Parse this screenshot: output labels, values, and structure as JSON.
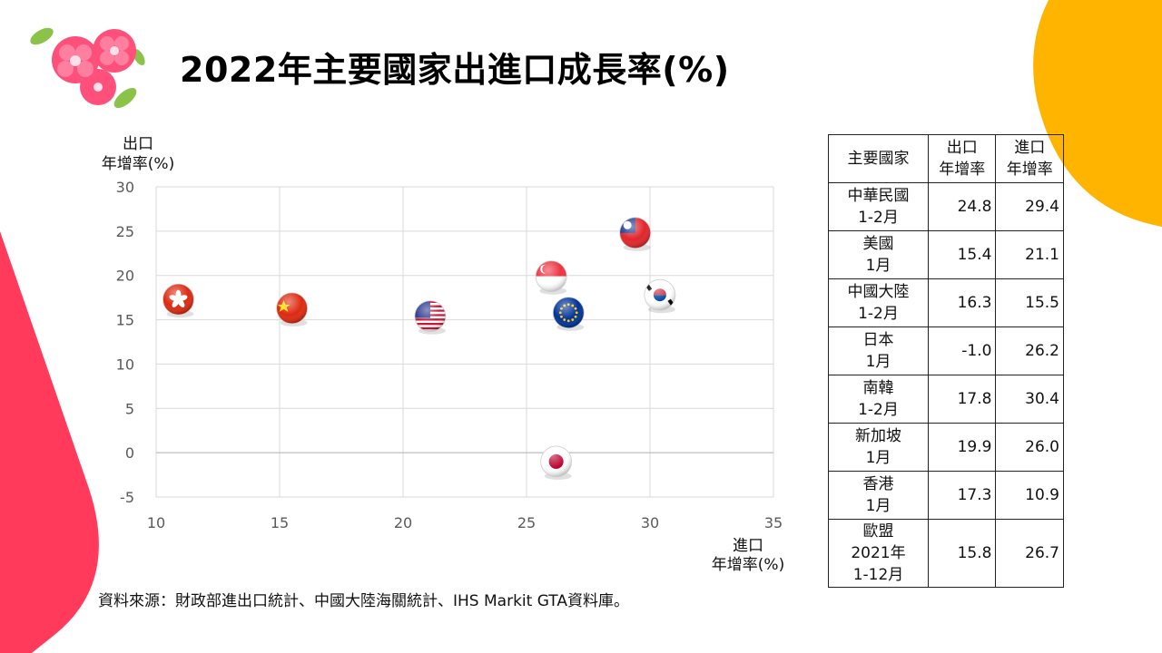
{
  "title": "2022年主要國家出進口成長率(%)",
  "source": "資料來源：財政部進出口統計、中國大陸海關統計、IHS Markit GTA資料庫。",
  "table": {
    "headers": [
      "主要國家",
      "出口\n年增率",
      "進口\n年增率"
    ],
    "rows": [
      {
        "country": "中華民國\n1-2月",
        "export": "24.8",
        "import": "29.4"
      },
      {
        "country": "美國\n1月",
        "export": "15.4",
        "import": "21.1"
      },
      {
        "country": "中國大陸\n1-2月",
        "export": "16.3",
        "import": "15.5"
      },
      {
        "country": "日本\n1月",
        "export": "-1.0",
        "import": "26.2"
      },
      {
        "country": "南韓\n1-2月",
        "export": "17.8",
        "import": "30.4"
      },
      {
        "country": "新加坡\n1月",
        "export": "19.9",
        "import": "26.0"
      },
      {
        "country": "香港\n1月",
        "export": "17.3",
        "import": "10.9"
      },
      {
        "country": "歐盟\n2021年\n1-12月",
        "export": "15.8",
        "import": "26.7"
      }
    ]
  },
  "chart_data": {
    "type": "scatter",
    "ylabel_lines": [
      "出口",
      "年增率(%)"
    ],
    "xlabel_lines": [
      "進口",
      "年增率(%)"
    ],
    "xlim": [
      10,
      35
    ],
    "ylim": [
      -5,
      30
    ],
    "xticks": [
      "10",
      "15",
      "20",
      "25",
      "30",
      "35"
    ],
    "yticks": [
      "30",
      "25",
      "20",
      "15",
      "10",
      "5",
      "0",
      "-5"
    ],
    "grid": true,
    "points": [
      {
        "name": "中華民國",
        "flag": "taiwan-flag",
        "x": 29.4,
        "y": 24.8
      },
      {
        "name": "美國",
        "flag": "usa-flag",
        "x": 21.1,
        "y": 15.4
      },
      {
        "name": "中國大陸",
        "flag": "china-flag",
        "x": 15.5,
        "y": 16.3
      },
      {
        "name": "日本",
        "flag": "japan-flag",
        "x": 26.2,
        "y": -1.0
      },
      {
        "name": "南韓",
        "flag": "korea-flag",
        "x": 30.4,
        "y": 17.8
      },
      {
        "name": "新加坡",
        "flag": "singapore-flag",
        "x": 26.0,
        "y": 19.9
      },
      {
        "name": "香港",
        "flag": "hongkong-flag",
        "x": 10.9,
        "y": 17.3
      },
      {
        "name": "歐盟",
        "flag": "eu-flag",
        "x": 26.7,
        "y": 15.8
      }
    ]
  },
  "colors": {
    "left_shape": "#ff3a5a",
    "right_shape": "#ffb400",
    "grid": "#d9d9d9",
    "axis_text": "#595959"
  }
}
